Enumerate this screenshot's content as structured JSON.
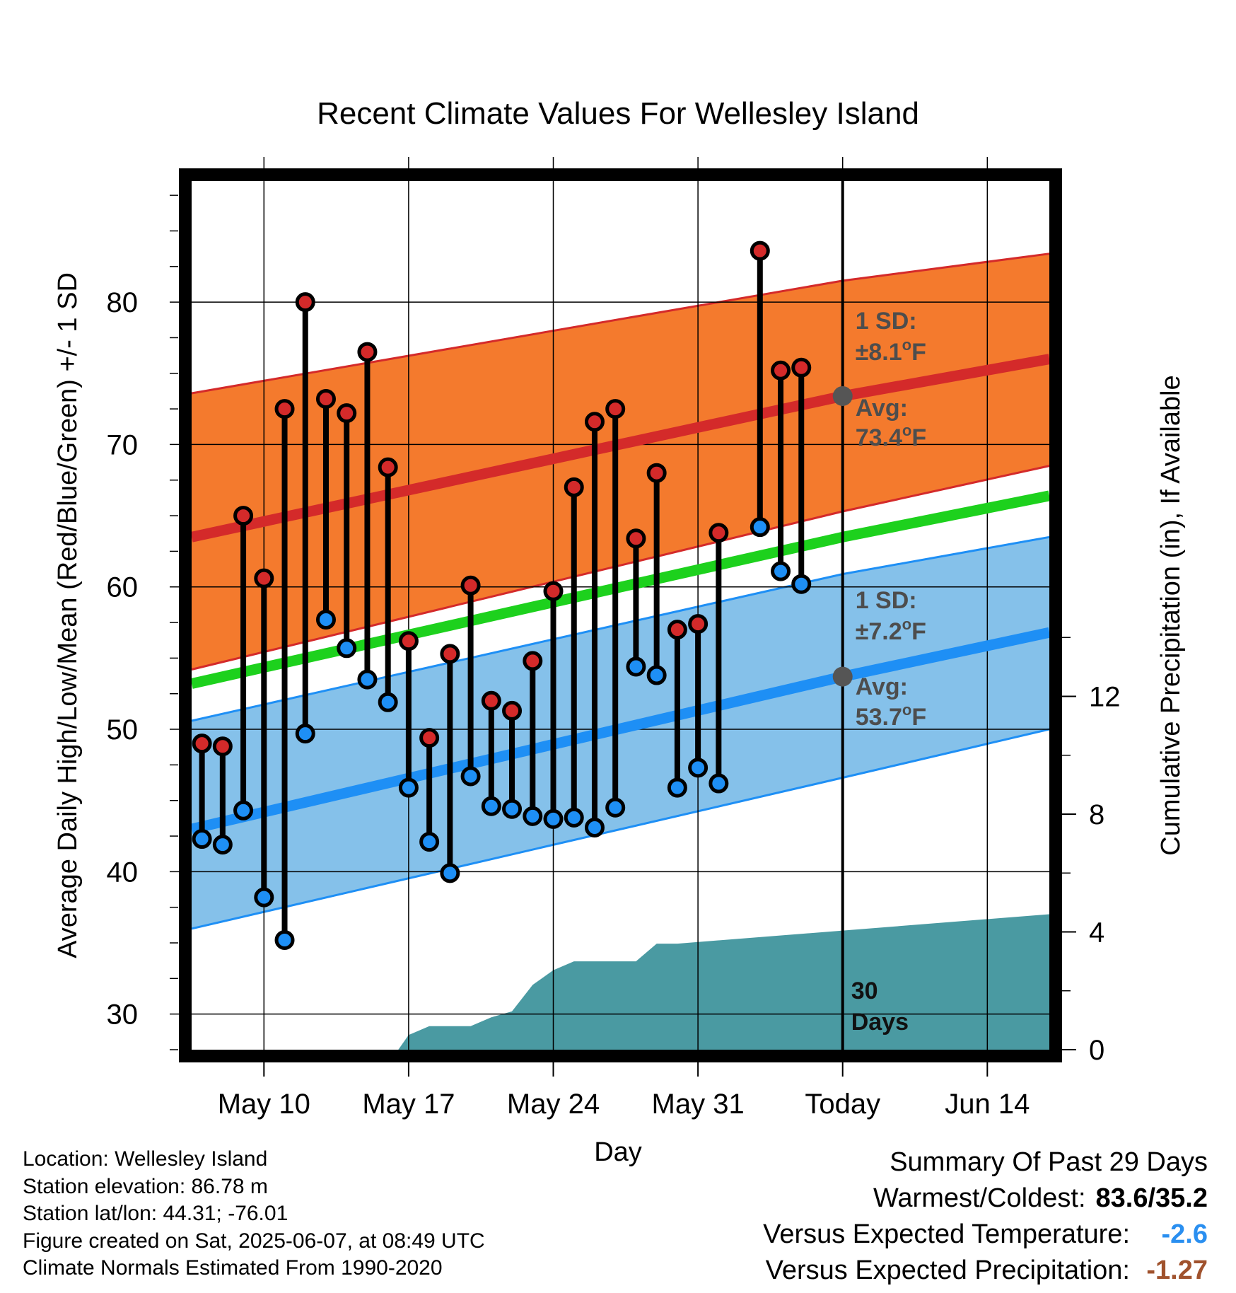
{
  "chart_data": {
    "type": "line",
    "title": "Recent Climate Values For Wellesley Island",
    "xlabel": "Day",
    "ylabel": "Average Daily High/Low/Mean (Red/Blue/Green) +/- 1 SD",
    "y2label": "Cumulative Precipitation (in), If Available",
    "x_tick_labels": [
      "May 10",
      "May 17",
      "May 24",
      "May 31",
      "Today",
      "Jun 14"
    ],
    "y_ticks": [
      30,
      40,
      50,
      60,
      70,
      80
    ],
    "y2_ticks": [
      0,
      4,
      8,
      12
    ],
    "ylim": [
      27.5,
      88.5
    ],
    "y2lim": [
      0,
      29.5
    ],
    "xlim_days": [
      "2025-05-06T12:00",
      "2025-06-17"
    ],
    "today": "2025-06-07",
    "grid": true,
    "normals": {
      "high_mean": {
        "dates": [
          "2025-05-06T12:00",
          "2025-06-07",
          "2025-06-17"
        ],
        "values": [
          63.5,
          73.4,
          76.0
        ],
        "color": "#d42a2a"
      },
      "high_upper": {
        "dates": [
          "2025-05-06T12:00",
          "2025-06-07",
          "2025-06-17"
        ],
        "values": [
          73.6,
          81.5,
          83.4
        ]
      },
      "high_lower": {
        "dates": [
          "2025-05-06T12:00",
          "2025-06-07",
          "2025-06-17"
        ],
        "values": [
          54.2,
          65.3,
          68.5
        ]
      },
      "mean": {
        "dates": [
          "2025-05-06T12:00",
          "2025-06-07",
          "2025-06-17"
        ],
        "values": [
          53.2,
          63.5,
          66.4
        ],
        "color": "#1dd11d"
      },
      "low_mean": {
        "dates": [
          "2025-05-06T12:00",
          "2025-06-07",
          "2025-06-17"
        ],
        "values": [
          43.0,
          53.7,
          56.8
        ],
        "color": "#1e8ff5"
      },
      "low_upper": {
        "dates": [
          "2025-05-06T12:00",
          "2025-06-07",
          "2025-06-17"
        ],
        "values": [
          50.6,
          60.9,
          63.5
        ]
      },
      "low_lower": {
        "dates": [
          "2025-05-06T12:00",
          "2025-06-07",
          "2025-06-17"
        ],
        "values": [
          36.0,
          46.6,
          50.0
        ]
      }
    },
    "daily": [
      {
        "date": "2025-05-07",
        "high": 49.0,
        "low": 42.3
      },
      {
        "date": "2025-05-08",
        "high": 48.8,
        "low": 41.9
      },
      {
        "date": "2025-05-09",
        "high": 65.0,
        "low": 44.3
      },
      {
        "date": "2025-05-10",
        "high": 60.6,
        "low": 38.2
      },
      {
        "date": "2025-05-11",
        "high": 72.5,
        "low": 35.2
      },
      {
        "date": "2025-05-12",
        "high": 80.0,
        "low": 49.7
      },
      {
        "date": "2025-05-13",
        "high": 73.2,
        "low": 57.7
      },
      {
        "date": "2025-05-14",
        "high": 72.2,
        "low": 55.7
      },
      {
        "date": "2025-05-15",
        "high": 76.5,
        "low": 53.5
      },
      {
        "date": "2025-05-16",
        "high": 68.4,
        "low": 51.9
      },
      {
        "date": "2025-05-17",
        "high": 56.2,
        "low": 45.9
      },
      {
        "date": "2025-05-18",
        "high": 49.4,
        "low": 42.1
      },
      {
        "date": "2025-05-19",
        "high": 55.3,
        "low": 39.9
      },
      {
        "date": "2025-05-20",
        "high": 60.1,
        "low": 46.7
      },
      {
        "date": "2025-05-21",
        "high": 52.0,
        "low": 44.6
      },
      {
        "date": "2025-05-22",
        "high": 51.3,
        "low": 44.4
      },
      {
        "date": "2025-05-23",
        "high": 54.8,
        "low": 43.9
      },
      {
        "date": "2025-05-24",
        "high": 59.7,
        "low": 43.7
      },
      {
        "date": "2025-05-25",
        "high": 67.0,
        "low": 43.8
      },
      {
        "date": "2025-05-26",
        "high": 71.6,
        "low": 43.1
      },
      {
        "date": "2025-05-27",
        "high": 72.5,
        "low": 44.5
      },
      {
        "date": "2025-05-28",
        "high": 63.4,
        "low": 54.4
      },
      {
        "date": "2025-05-29",
        "high": 68.0,
        "low": 53.8
      },
      {
        "date": "2025-05-30",
        "high": 57.0,
        "low": 45.9
      },
      {
        "date": "2025-05-31",
        "high": 57.4,
        "low": 47.3
      },
      {
        "date": "2025-06-01",
        "high": 63.8,
        "low": 46.2
      },
      {
        "date": "2025-06-03",
        "high": 83.6,
        "low": 64.2
      },
      {
        "date": "2025-06-04",
        "high": 75.2,
        "low": 61.1
      },
      {
        "date": "2025-06-05",
        "high": 75.4,
        "low": 60.2
      }
    ],
    "precipitation_cumulative": {
      "color": "#4a9aa2",
      "dates": [
        "2025-05-16T12:00",
        "2025-05-17",
        "2025-05-18",
        "2025-05-19",
        "2025-05-20",
        "2025-05-21",
        "2025-05-22",
        "2025-05-23",
        "2025-05-24",
        "2025-05-25",
        "2025-05-26",
        "2025-05-27",
        "2025-05-28",
        "2025-05-29",
        "2025-05-30",
        "2025-06-17"
      ],
      "values": [
        0,
        0.5,
        0.8,
        0.8,
        0.8,
        1.1,
        1.3,
        2.2,
        2.7,
        3.0,
        3.0,
        3.0,
        3.0,
        3.6,
        3.6,
        4.6
      ]
    },
    "annotations": {
      "high_sd_label": "1 SD:",
      "high_sd_value": "±8.1°F",
      "high_avg_label": "Avg:",
      "high_avg_value": "73.4°F",
      "high_avg": 73.4,
      "low_sd_label": "1 SD:",
      "low_sd_value": "±7.2°F",
      "low_avg_label": "Avg:",
      "low_avg_value": "53.7°F",
      "low_avg": 53.7,
      "days_number": "30",
      "days_word": "Days"
    }
  },
  "info": {
    "location": "Location: Wellesley Island",
    "elevation": "Station elevation: 86.78 m",
    "latlon": "Station lat/lon: 44.31; -76.01",
    "created": "Figure created on Sat, 2025-06-07, at 08:49 UTC",
    "normals": "Climate Normals Estimated From 1990-2020"
  },
  "summary": {
    "title": "Summary Of Past 29 Days",
    "warm_cold_label": "Warmest/Coldest:",
    "warm_cold_value": "83.6/35.2",
    "temp_label": "Versus Expected Temperature:",
    "temp_value": "-2.6",
    "temp_color": "#2a8ff0",
    "precip_label": "Versus Expected Precipitation:",
    "precip_value": "-1.27",
    "precip_color": "#a0522d"
  }
}
